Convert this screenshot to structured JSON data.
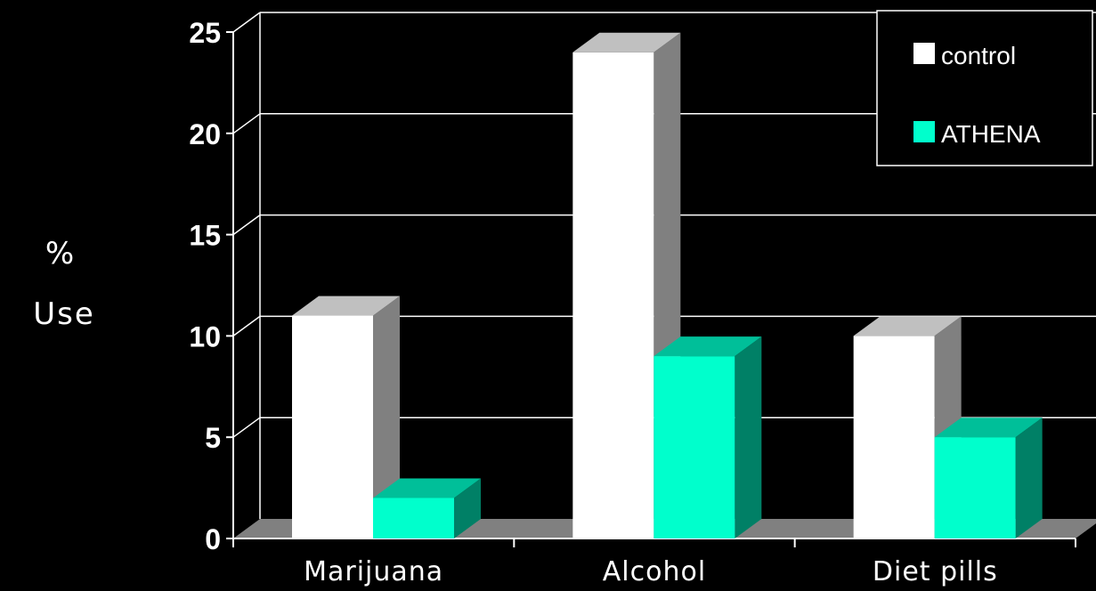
{
  "chart_data": {
    "type": "bar",
    "categories": [
      "Marijuana",
      "Alcohol",
      "Diet pills"
    ],
    "series": [
      {
        "name": "control",
        "values": [
          11,
          24,
          10
        ],
        "color": "#ffffff"
      },
      {
        "name": "ATHENA",
        "values": [
          2,
          9,
          5
        ],
        "color": "#00ffcc"
      }
    ],
    "ylabel": [
      "%",
      "Use"
    ],
    "yticks": [
      0,
      5,
      10,
      15,
      20,
      25
    ],
    "ylim": [
      0,
      25
    ],
    "grid": true,
    "legend_position": "top-right",
    "style": "3d"
  }
}
